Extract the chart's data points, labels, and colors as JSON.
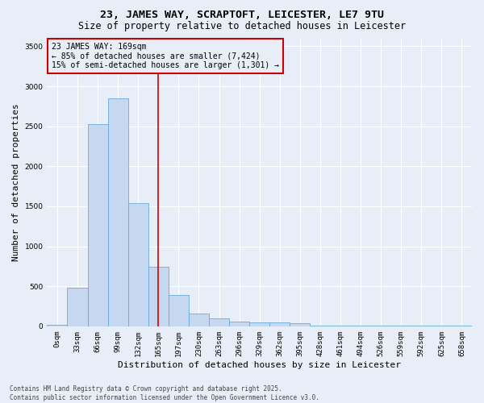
{
  "title_line1": "23, JAMES WAY, SCRAPTOFT, LEICESTER, LE7 9TU",
  "title_line2": "Size of property relative to detached houses in Leicester",
  "xlabel": "Distribution of detached houses by size in Leicester",
  "ylabel": "Number of detached properties",
  "bar_color": "#c5d8f0",
  "bar_edge_color": "#6baad8",
  "background_color": "#e8eef8",
  "grid_color": "#ffffff",
  "vline_color": "#cc0000",
  "annotation_text": "23 JAMES WAY: 169sqm\n← 85% of detached houses are smaller (7,424)\n15% of semi-detached houses are larger (1,301) →",
  "annotation_box_color": "#cc0000",
  "categories": [
    "0sqm",
    "33sqm",
    "66sqm",
    "99sqm",
    "132sqm",
    "165sqm",
    "197sqm",
    "230sqm",
    "263sqm",
    "296sqm",
    "329sqm",
    "362sqm",
    "395sqm",
    "428sqm",
    "461sqm",
    "494sqm",
    "526sqm",
    "559sqm",
    "592sqm",
    "625sqm",
    "658sqm"
  ],
  "values": [
    15,
    480,
    2530,
    2850,
    1540,
    740,
    390,
    155,
    100,
    55,
    45,
    45,
    40,
    5,
    5,
    5,
    5,
    5,
    5,
    5,
    5
  ],
  "ylim": [
    0,
    3600
  ],
  "yticks": [
    0,
    500,
    1000,
    1500,
    2000,
    2500,
    3000,
    3500
  ],
  "footer_line1": "Contains HM Land Registry data © Crown copyright and database right 2025.",
  "footer_line2": "Contains public sector information licensed under the Open Government Licence v3.0.",
  "title_fontsize": 9.5,
  "subtitle_fontsize": 8.5,
  "tick_fontsize": 6.5,
  "ylabel_fontsize": 8,
  "xlabel_fontsize": 8,
  "annotation_fontsize": 7,
  "footer_fontsize": 5.5,
  "vline_pos": 5.0
}
